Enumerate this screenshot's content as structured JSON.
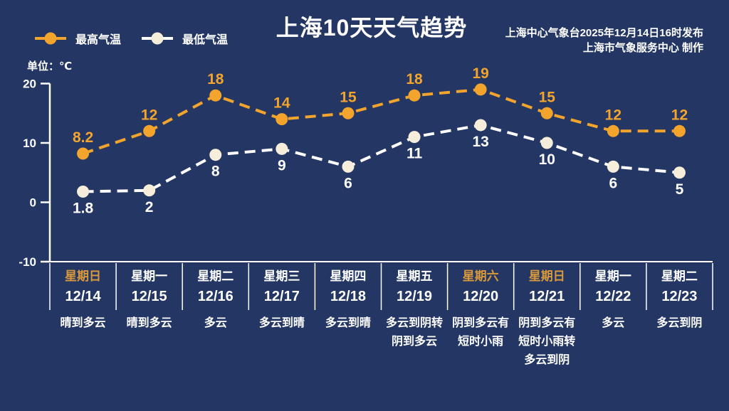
{
  "title": "上海10天天气趋势",
  "source": {
    "line1": "上海中心气象台2025年12月14日16时发布",
    "line2": "上海市气象服务中心  制作"
  },
  "unit_label": "单位：℃",
  "legend": {
    "high_label": "最高气温",
    "low_label": "最低气温"
  },
  "colors": {
    "background": "#243764",
    "high": "#F2A42D",
    "low_line": "#FFFFFF",
    "low_fill": "#F6EEDA",
    "axis": "#FFFFFF",
    "weekend_text": "#D9993A"
  },
  "chart_data": {
    "type": "line",
    "categories": [
      "星期日",
      "星期一",
      "星期二",
      "星期三",
      "星期四",
      "星期五",
      "星期六",
      "星期日",
      "星期一",
      "星期二"
    ],
    "dates": [
      "12/14",
      "12/15",
      "12/16",
      "12/17",
      "12/18",
      "12/19",
      "12/20",
      "12/21",
      "12/22",
      "12/23"
    ],
    "conditions": [
      "晴到多云",
      "晴到多云",
      "多云",
      "多云到晴",
      "多云到晴",
      "多云到阴转阴到多云",
      "阴到多云有短时小雨",
      "阴到多云有短时小雨转多云到阴",
      "多云",
      "多云到阴"
    ],
    "weekend_indices": [
      0,
      6,
      7
    ],
    "series": [
      {
        "name": "最高气温",
        "values": [
          8.2,
          12,
          18,
          14,
          15,
          18,
          19,
          15,
          12,
          12
        ]
      },
      {
        "name": "最低气温",
        "values": [
          1.8,
          2,
          8,
          9,
          6,
          11,
          13,
          10,
          6,
          5
        ]
      }
    ],
    "ylabel": "单位：℃",
    "ylim": [
      -10,
      20
    ],
    "yticks": [
      20,
      10,
      0,
      -10
    ],
    "grid": false,
    "legend_position": "top-left",
    "line_style": "dashed"
  }
}
